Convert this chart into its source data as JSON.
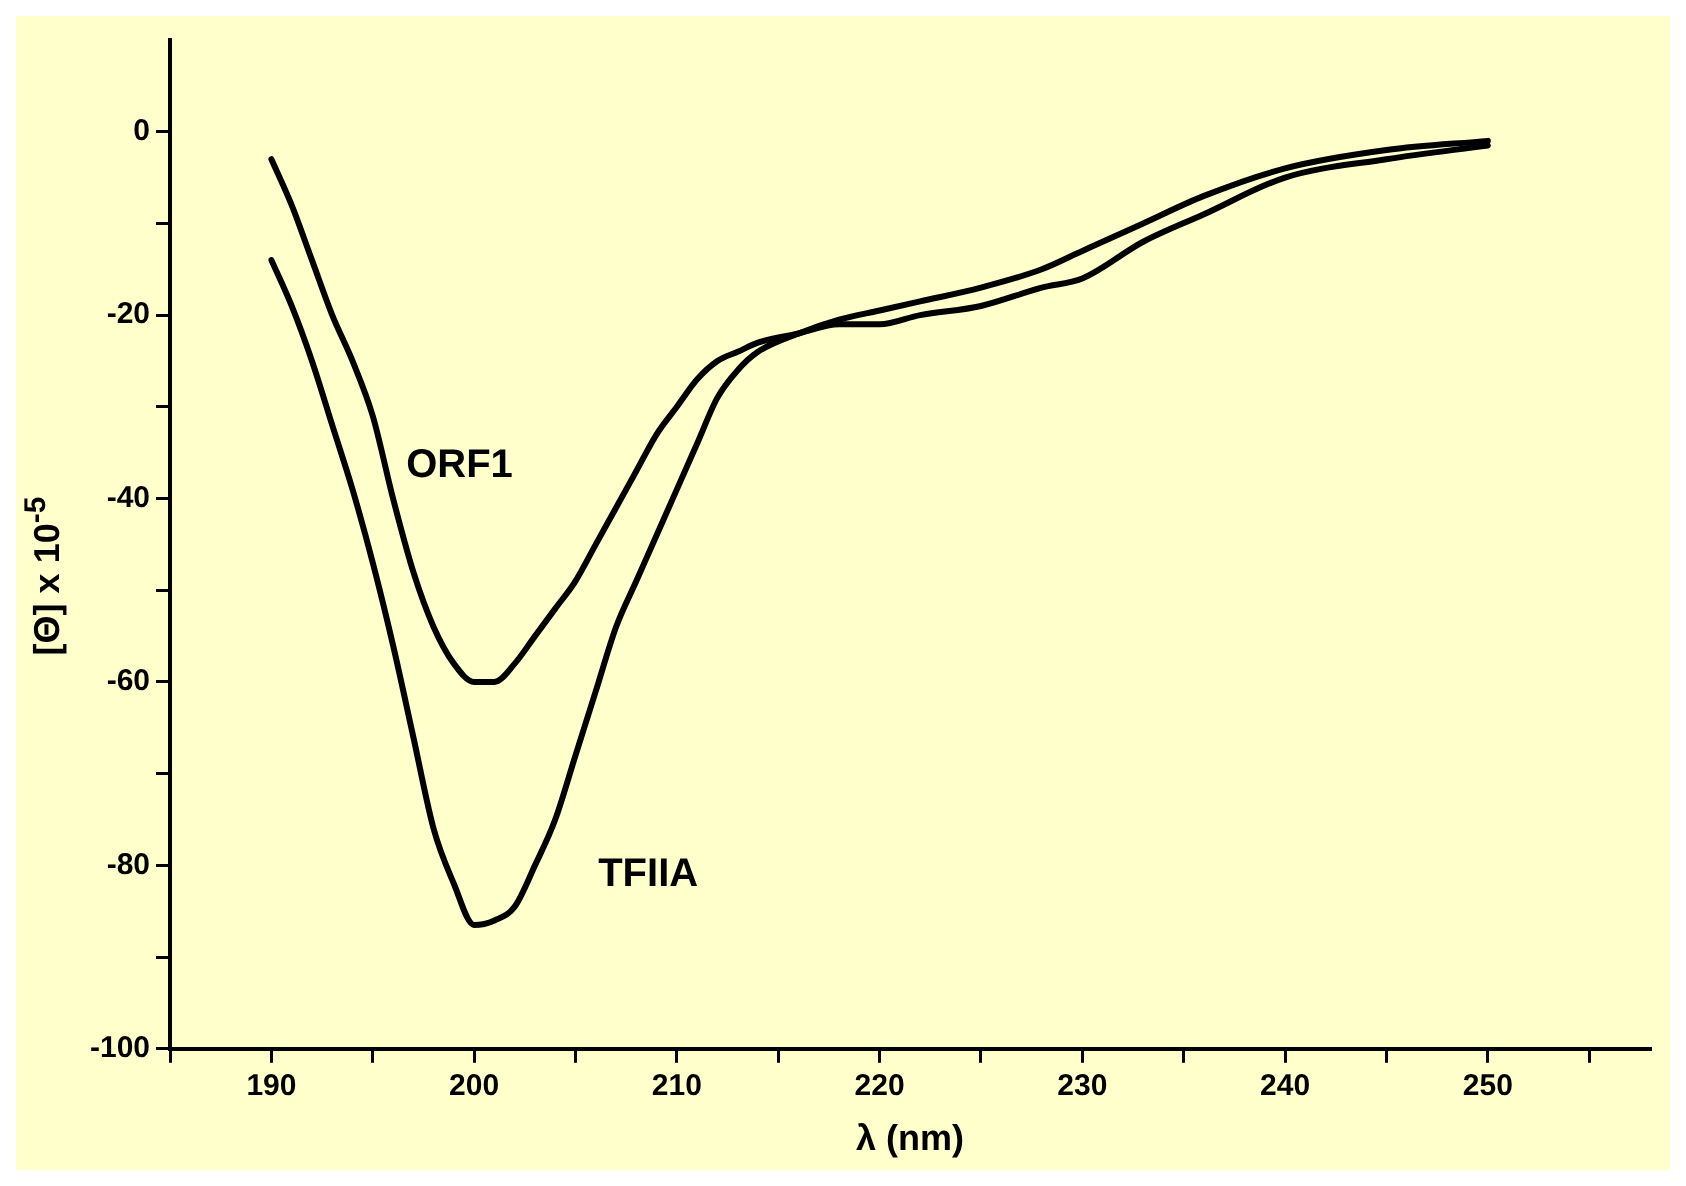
{
  "chart_data": {
    "type": "line",
    "xlabel": "λ (nm)",
    "ylabel": "[Θ] x 10$^{-5}$",
    "xlim": [
      185,
      258
    ],
    "xticks": [
      {
        "value": 185,
        "label": null
      },
      190,
      {
        "value": 195,
        "label": null
      },
      200,
      {
        "value": 205,
        "label": null
      },
      210,
      {
        "value": 215,
        "label": null
      },
      220,
      {
        "value": 225,
        "label": null
      },
      230,
      {
        "value": 235,
        "label": null
      },
      240,
      {
        "value": 245,
        "label": null
      },
      250,
      {
        "value": 255,
        "label": null
      }
    ],
    "ylim": [
      -100,
      10
    ],
    "yticks": [
      -100,
      {
        "value": -90,
        "label": null
      },
      -80,
      {
        "value": -70,
        "label": null
      },
      -60,
      {
        "value": -50,
        "label": null
      },
      -40,
      {
        "value": -30,
        "label": null
      },
      -20,
      {
        "value": -10,
        "label": null
      },
      0
    ],
    "grid": false,
    "legend": false,
    "marker": "none",
    "line_style": "solid",
    "series": [
      {
        "name": "ORF1",
        "color": "#000000",
        "x": [
          190,
          191,
          192,
          193,
          194,
          195,
          196,
          197,
          198,
          199,
          200,
          201,
          202,
          203,
          204,
          205,
          206,
          207,
          208,
          209,
          210,
          211,
          212,
          213,
          214,
          216,
          218,
          220,
          222,
          225,
          228,
          230,
          233,
          236,
          240,
          245,
          250
        ],
        "values": [
          -3,
          -8,
          -14,
          -20,
          -25,
          -31,
          -40,
          -48,
          -54,
          -58,
          -60,
          -60,
          -58,
          -55,
          -52,
          -49,
          -45,
          -41,
          -37,
          -33,
          -30,
          -27,
          -25,
          -24,
          -23,
          -22,
          -21,
          -21,
          -20,
          -19,
          -17,
          -16,
          -12,
          -9,
          -5,
          -3,
          -1.5
        ]
      },
      {
        "name": "TFIIA",
        "color": "#000000",
        "x": [
          190,
          191,
          192,
          193,
          194,
          195,
          196,
          197,
          198,
          199,
          200,
          201,
          202,
          203,
          204,
          205,
          206,
          207,
          208,
          209,
          210,
          211,
          212,
          213,
          214,
          216,
          218,
          220,
          222,
          225,
          228,
          230,
          233,
          236,
          240,
          245,
          250
        ],
        "values": [
          -14,
          -19,
          -25,
          -32,
          -39,
          -47,
          -56,
          -66,
          -76,
          -82,
          -86.5,
          -86,
          -84.5,
          -80,
          -75,
          -68,
          -61,
          -54,
          -49,
          -44,
          -39,
          -34,
          -29,
          -26,
          -24,
          -22,
          -20.5,
          -19.5,
          -18.5,
          -17,
          -15,
          -13,
          -10,
          -7,
          -4,
          -2,
          -1
        ]
      }
    ]
  }
}
